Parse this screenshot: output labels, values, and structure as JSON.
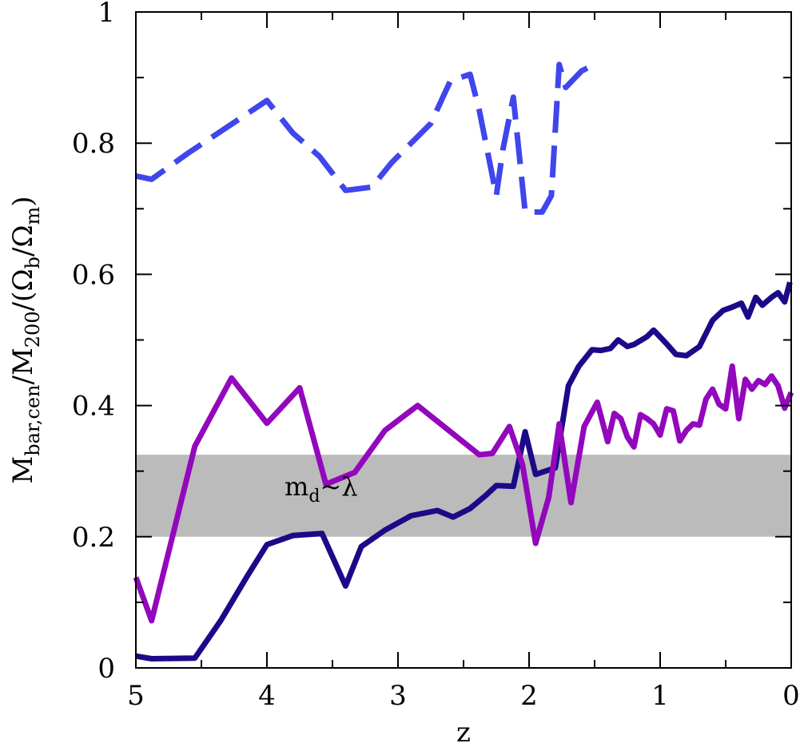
{
  "chart_data": {
    "type": "line",
    "title": "",
    "xlabel": "z",
    "ylabel_main": "M",
    "ylabel_sub1": "bar,cen",
    "ylabel_mid": "/M",
    "ylabel_sub2": "200",
    "ylabel_mid2": "/(Ω",
    "ylabel_sub3": "b",
    "ylabel_mid3": "/Ω",
    "ylabel_sub4": "m",
    "ylabel_end": ")",
    "xlim": [
      5,
      0
    ],
    "ylim": [
      0,
      1
    ],
    "x_ticks": [
      5,
      4,
      3,
      2,
      1,
      0
    ],
    "x_tick_labels": [
      "5",
      "4",
      "3",
      "2",
      "1",
      "0"
    ],
    "y_ticks": [
      0,
      0.2,
      0.4,
      0.6,
      0.8,
      1
    ],
    "y_tick_labels": [
      "0",
      "0.2",
      "0.4",
      "0.6",
      "0.8",
      "1"
    ],
    "band": {
      "y0": 0.2,
      "y1": 0.325,
      "color": "#bbbbbb",
      "label_main": "m",
      "label_sub": "d",
      "label_end": "~λ",
      "label_x": 3.5,
      "label_y": 0.275
    },
    "series": [
      {
        "style": "dashed",
        "color": "#3e46ec",
        "x": [
          5.0,
          4.88,
          4.6,
          4.3,
          4.0,
          3.8,
          3.6,
          3.4,
          3.2,
          3.05,
          2.9,
          2.75,
          2.6,
          2.45,
          2.38,
          2.25,
          2.2,
          2.12,
          2.03,
          1.9,
          1.83,
          1.77,
          1.72,
          1.6,
          1.55
        ],
        "y": [
          0.75,
          0.745,
          0.785,
          0.825,
          0.865,
          0.815,
          0.78,
          0.728,
          0.733,
          0.77,
          0.8,
          0.83,
          0.895,
          0.905,
          0.85,
          0.72,
          0.79,
          0.87,
          0.695,
          0.695,
          0.72,
          0.92,
          0.885,
          0.91,
          0.915
        ]
      },
      {
        "style": "solid",
        "color": "#1b0a88",
        "x": [
          5.0,
          4.88,
          4.55,
          4.35,
          4.15,
          4.0,
          3.8,
          3.58,
          3.4,
          3.28,
          3.1,
          2.9,
          2.7,
          2.58,
          2.45,
          2.33,
          2.25,
          2.12,
          2.03,
          1.95,
          1.8,
          1.7,
          1.62,
          1.52,
          1.45,
          1.38,
          1.32,
          1.25,
          1.2,
          1.1,
          1.05,
          0.95,
          0.88,
          0.8,
          0.7,
          0.6,
          0.52,
          0.45,
          0.38,
          0.33,
          0.27,
          0.22,
          0.15,
          0.1,
          0.05,
          0.01
        ],
        "y": [
          0.018,
          0.014,
          0.015,
          0.073,
          0.14,
          0.188,
          0.202,
          0.205,
          0.125,
          0.185,
          0.21,
          0.232,
          0.24,
          0.23,
          0.243,
          0.263,
          0.278,
          0.277,
          0.36,
          0.295,
          0.305,
          0.43,
          0.46,
          0.485,
          0.484,
          0.487,
          0.5,
          0.49,
          0.493,
          0.505,
          0.515,
          0.494,
          0.478,
          0.476,
          0.49,
          0.53,
          0.545,
          0.55,
          0.556,
          0.535,
          0.565,
          0.553,
          0.565,
          0.572,
          0.558,
          0.588
        ]
      },
      {
        "style": "solid",
        "color": "#9307bd",
        "x": [
          5.0,
          4.88,
          4.55,
          4.27,
          4.0,
          3.75,
          3.55,
          3.33,
          3.1,
          2.85,
          2.6,
          2.38,
          2.28,
          2.15,
          2.05,
          1.95,
          1.85,
          1.77,
          1.68,
          1.58,
          1.48,
          1.4,
          1.35,
          1.3,
          1.25,
          1.2,
          1.15,
          1.1,
          1.05,
          1.0,
          0.95,
          0.9,
          0.85,
          0.8,
          0.75,
          0.7,
          0.65,
          0.6,
          0.55,
          0.5,
          0.45,
          0.4,
          0.35,
          0.3,
          0.25,
          0.2,
          0.15,
          0.1,
          0.05,
          0.0
        ],
        "y": [
          0.138,
          0.072,
          0.338,
          0.442,
          0.373,
          0.427,
          0.28,
          0.298,
          0.362,
          0.4,
          0.36,
          0.325,
          0.327,
          0.368,
          0.31,
          0.19,
          0.26,
          0.372,
          0.252,
          0.368,
          0.405,
          0.345,
          0.388,
          0.38,
          0.352,
          0.337,
          0.386,
          0.38,
          0.372,
          0.355,
          0.395,
          0.392,
          0.346,
          0.362,
          0.372,
          0.37,
          0.41,
          0.425,
          0.402,
          0.395,
          0.46,
          0.38,
          0.44,
          0.425,
          0.438,
          0.432,
          0.445,
          0.43,
          0.396,
          0.42
        ]
      }
    ]
  }
}
